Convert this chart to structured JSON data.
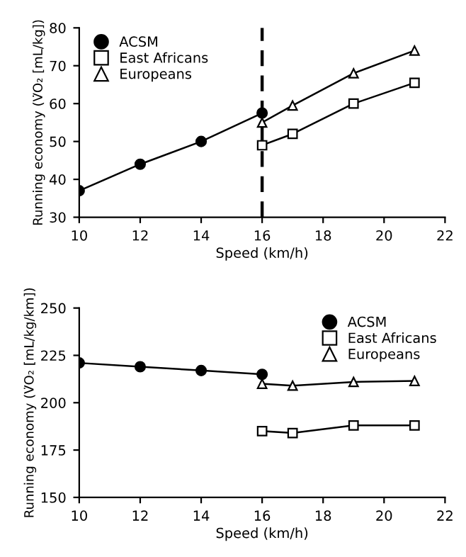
{
  "chart_data": [
    {
      "type": "line",
      "xlabel": "Speed (km/h)",
      "ylabel": "Running economy (V̇O₂ [mL/kg])",
      "xlim": [
        10,
        22
      ],
      "xticks": [
        10,
        12,
        14,
        16,
        18,
        20,
        22
      ],
      "ylim": [
        30,
        80
      ],
      "yticks": [
        30,
        40,
        50,
        60,
        70,
        80
      ],
      "grid": false,
      "legend": "top left",
      "series": [
        {
          "name": "ACSM",
          "color": "#000000",
          "marker": "circle",
          "x": [
            10,
            12,
            14,
            16
          ],
          "values": [
            37,
            44,
            50,
            57.5
          ]
        },
        {
          "name": "East Africans",
          "color": "#000000",
          "marker": "square",
          "x": [
            16,
            17,
            19,
            21
          ],
          "values": [
            49,
            52,
            60,
            65.5
          ]
        },
        {
          "name": "Europeans",
          "color": "#000000",
          "marker": "triangle",
          "x": [
            16,
            17,
            19,
            21
          ],
          "values": [
            55,
            59.5,
            68,
            74
          ]
        }
      ],
      "ref_lines": [
        {
          "axis": "x",
          "value": 16,
          "color": "#000000",
          "line_style": "dashed"
        }
      ]
    },
    {
      "type": "line",
      "xlabel": "Speed (km/h)",
      "ylabel": "Running economy (V̇O₂ [mL/kg/km])",
      "xlim": [
        10,
        22
      ],
      "xticks": [
        10,
        12,
        14,
        16,
        18,
        20,
        22
      ],
      "ylim": [
        150,
        250
      ],
      "yticks": [
        150,
        175,
        200,
        225,
        250
      ],
      "grid": false,
      "legend": "top right",
      "series": [
        {
          "name": "ACSM",
          "color": "#000000",
          "marker": "circle",
          "x": [
            10,
            12,
            14,
            16
          ],
          "values": [
            221,
            219,
            217,
            215
          ]
        },
        {
          "name": "East Africans",
          "color": "#000000",
          "marker": "square",
          "x": [
            16,
            17,
            19,
            21
          ],
          "values": [
            185,
            184,
            188,
            188
          ]
        },
        {
          "name": "Europeans",
          "color": "#000000",
          "marker": "triangle",
          "x": [
            16,
            17,
            19,
            21
          ],
          "values": [
            210,
            209,
            211,
            211.5
          ]
        }
      ]
    }
  ]
}
